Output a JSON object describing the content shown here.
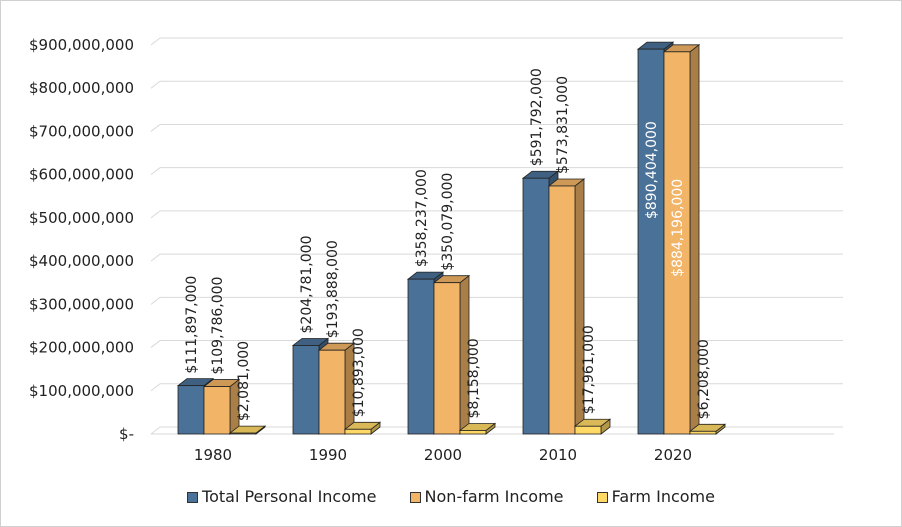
{
  "chart_data": {
    "type": "bar",
    "style": "3d-clustered-column",
    "title": "",
    "xlabel": "",
    "ylabel": "",
    "ylim": [
      0,
      900000000
    ],
    "y_tick_values": [
      0,
      100000000,
      200000000,
      300000000,
      400000000,
      500000000,
      600000000,
      700000000,
      800000000,
      900000000
    ],
    "y_tick_labels": [
      "$-",
      "$100,000,000",
      "$200,000,000",
      "$300,000,000",
      "$400,000,000",
      "$500,000,000",
      "$600,000,000",
      "$700,000,000",
      "$800,000,000",
      "$900,000,000"
    ],
    "grid": true,
    "legend_position": "bottom",
    "categories": [
      "1980",
      "1990",
      "2000",
      "2010",
      "2020"
    ],
    "series": [
      {
        "name": "Total Personal Income",
        "color": "#4a7198",
        "values": [
          111897000,
          204781000,
          358237000,
          591792000,
          890404000
        ],
        "labels": [
          "$111,897,000",
          "$204,781,000",
          "$358,237,000",
          "$591,792,000",
          "$890,404,000"
        ]
      },
      {
        "name": "Non-farm Income",
        "color": "#f2b466",
        "values": [
          109786000,
          193888000,
          350079000,
          573831000,
          884196000
        ],
        "labels": [
          "$109,786,000",
          "$193,888,000",
          "$350,079,000",
          "$573,831,000",
          "$884,196,000"
        ]
      },
      {
        "name": "Farm Income",
        "color": "#ffd966",
        "values": [
          2081000,
          10893000,
          8158000,
          17961000,
          6208000
        ],
        "labels": [
          "$2,081,000",
          "$10,893,000",
          "$8,158,000",
          "$17,961,000",
          "$6,208,000"
        ]
      }
    ]
  }
}
